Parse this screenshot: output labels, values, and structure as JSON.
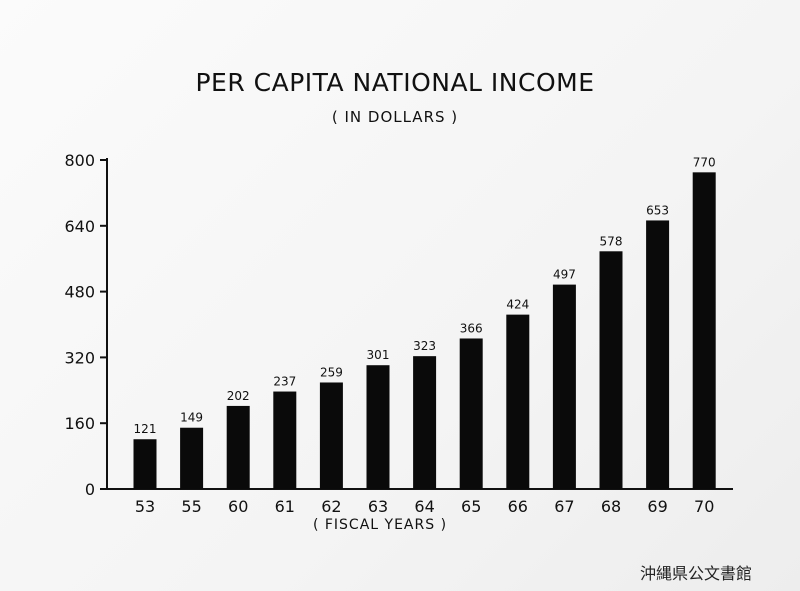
{
  "chart_data": {
    "type": "bar",
    "title": "PER CAPITA NATIONAL INCOME",
    "subtitle": "( IN DOLLARS )",
    "xlabel": "( FISCAL YEARS )",
    "ylabel": "",
    "categories": [
      "53",
      "55",
      "60",
      "61",
      "62",
      "63",
      "64",
      "65",
      "66",
      "67",
      "68",
      "69",
      "70"
    ],
    "values": [
      121,
      149,
      202,
      237,
      259,
      301,
      323,
      366,
      424,
      497,
      578,
      653,
      770
    ],
    "data_labels": [
      "121",
      "149",
      "202",
      "237",
      "259",
      "301",
      "323",
      "366",
      "424",
      "497",
      "578",
      "653",
      "770"
    ],
    "ylim": [
      0,
      800
    ],
    "yticks": [
      0,
      160,
      320,
      480,
      640,
      800
    ],
    "ytick_labels": [
      "0",
      "160",
      "320",
      "480",
      "640",
      "800"
    ],
    "grid": false,
    "legend": "none",
    "bar_color": "#0a0a0a"
  },
  "watermark": "沖縄県公文書館"
}
